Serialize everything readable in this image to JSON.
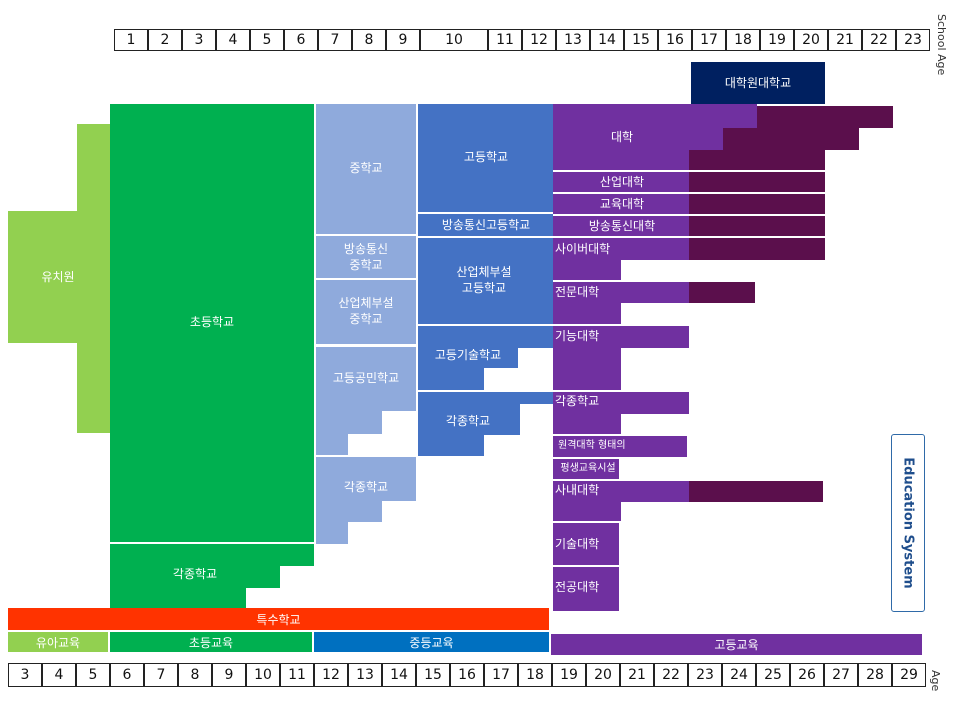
{
  "axes": {
    "school_age_label": "School Age",
    "age_label": "Age",
    "school_age": [
      "1",
      "2",
      "3",
      "4",
      "5",
      "6",
      "7",
      "8",
      "9",
      "10",
      "11",
      "12",
      "13",
      "14",
      "15",
      "16",
      "17",
      "18",
      "19",
      "20",
      "21",
      "22",
      "23"
    ],
    "age": [
      "3",
      "4",
      "5",
      "6",
      "7",
      "8",
      "9",
      "10",
      "11",
      "12",
      "13",
      "14",
      "15",
      "16",
      "17",
      "18",
      "19",
      "20",
      "21",
      "22",
      "23",
      "24",
      "25",
      "26",
      "27",
      "28",
      "29"
    ]
  },
  "labels": {
    "kindergarten": "유치원",
    "elementary": "초등학교",
    "elementary_misc": "각종학교",
    "middle": "중학교",
    "middle_broadcast": "방송통신\n중학교",
    "middle_industry": "산업체부설\n중학교",
    "civic_high": "고등공민학교",
    "middle_misc": "각종학교",
    "high": "고등학교",
    "high_broadcast": "방송통신고등학교",
    "high_industry": "산업체부설\n고등학교",
    "high_tech": "고등기술학교",
    "high_misc": "각종학교",
    "grad_school": "대학원대학교",
    "university": "대학",
    "industrial_univ": "산업대학",
    "education_univ": "교육대학",
    "broadcast_univ": "방송통신대학",
    "cyber_univ": "사이버대학",
    "college": "전문대학",
    "polytech": "기능대학",
    "higher_misc": "각종학교",
    "remote_lifelong": "원격대학 형태의",
    "lifelong_facility": "평생교육시설",
    "in_company": "사내대학",
    "tech_college": "기술대학",
    "major_college": "전공대학",
    "special": "특수학교"
  },
  "bottom_bars": {
    "early": "유아교육",
    "primary": "초등교육",
    "secondary": "중등교육",
    "higher": "고등교육"
  },
  "side_title": "Education System",
  "colors": {
    "kinder": "#92d050",
    "elementary": "#00b050",
    "middle": "#8faadc",
    "high": "#4472c4",
    "higher": "#7030a0",
    "grad": "#5b0f4c",
    "grad_school": "#002060",
    "special": "#ff3300",
    "secondary_bar": "#0070c0"
  }
}
